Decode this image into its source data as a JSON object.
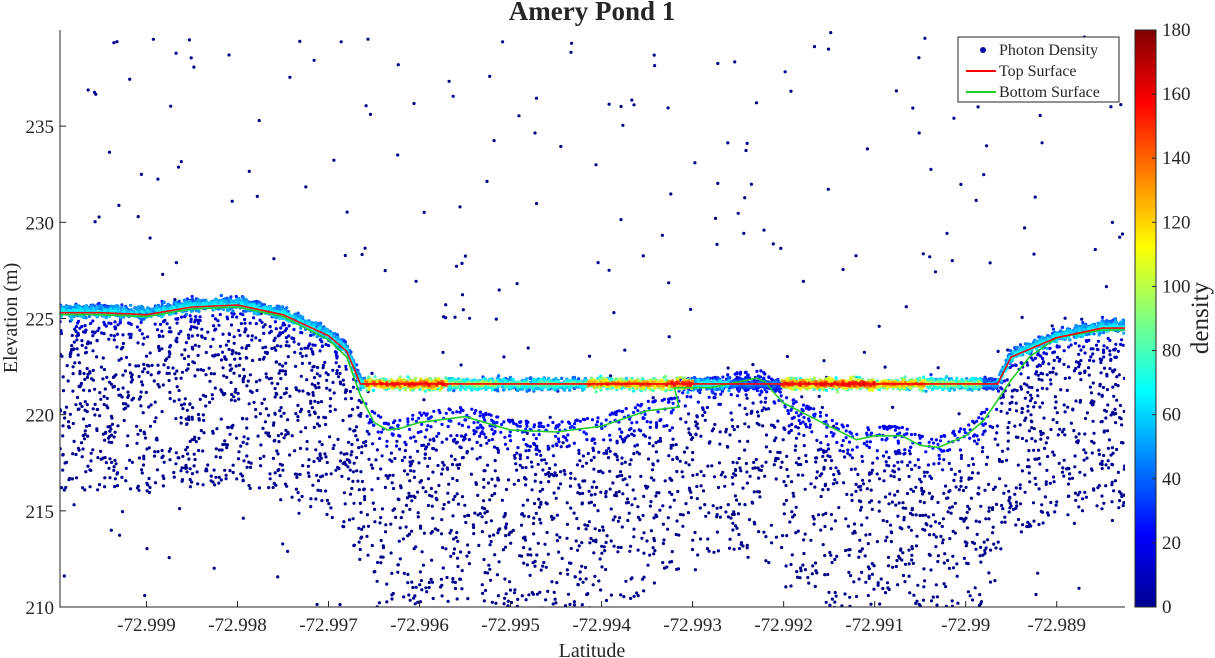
{
  "chart_data": {
    "type": "scatter",
    "title": "Amery Pond 1",
    "xlabel": "Latitude",
    "ylabel": "Elevation (m)",
    "xlim": [
      -72.99995,
      -72.98825
    ],
    "ylim": [
      210,
      240
    ],
    "xticks": [
      -72.999,
      -72.998,
      -72.997,
      -72.996,
      -72.995,
      -72.994,
      -72.993,
      -72.992,
      -72.991,
      -72.99,
      -72.989
    ],
    "xtick_labels": [
      "-72.999",
      "-72.998",
      "-72.997",
      "-72.996",
      "-72.995",
      "-72.994",
      "-72.993",
      "-72.992",
      "-72.991",
      "-72.99",
      "-72.989"
    ],
    "yticks": [
      210,
      215,
      220,
      225,
      230,
      235
    ],
    "ytick_labels": [
      "210",
      "215",
      "220",
      "225",
      "230",
      "235"
    ],
    "legend": {
      "position": "top-right",
      "entries": [
        {
          "label": "Photon Density",
          "marker": "dot",
          "color": "#0a0aa8"
        },
        {
          "label": "Top Surface",
          "marker": "line",
          "color": "#ff0000"
        },
        {
          "label": "Bottom Surface",
          "marker": "line",
          "color": "#22cc22"
        }
      ]
    },
    "colorbar": {
      "label": "density",
      "colormap": "jet",
      "range": [
        0,
        180
      ],
      "ticks": [
        0,
        20,
        40,
        60,
        80,
        100,
        120,
        140,
        160,
        180
      ],
      "tick_labels": [
        "0",
        "20",
        "40",
        "60",
        "80",
        "100",
        "120",
        "140",
        "160",
        "180"
      ]
    },
    "series": [
      {
        "name": "Top Surface",
        "type": "line",
        "color": "#ff0000",
        "x": [
          -72.99995,
          -72.9995,
          -72.999,
          -72.9985,
          -72.998,
          -72.9975,
          -72.997,
          -72.9968,
          -72.99665,
          -72.9965,
          -72.99,
          -72.98965,
          -72.9895,
          -72.989,
          -72.9885,
          -72.98825
        ],
        "y": [
          225.3,
          225.3,
          225.2,
          225.6,
          225.7,
          225.2,
          224.1,
          223.3,
          221.6,
          221.6,
          221.6,
          221.6,
          223.0,
          224.0,
          224.5,
          224.5
        ]
      },
      {
        "name": "Bottom Surface",
        "type": "line",
        "color": "#22cc22",
        "x": [
          -72.99995,
          -72.9995,
          -72.999,
          -72.9985,
          -72.998,
          -72.9975,
          -72.997,
          -72.9968,
          -72.99665,
          -72.9965,
          -72.99635,
          -72.9962,
          -72.996,
          -72.9955,
          -72.995,
          -72.9945,
          -72.994,
          -72.9935,
          -72.99315,
          -72.9932,
          -72.993,
          -72.9928,
          -72.9925,
          -72.9923,
          -72.9922,
          -72.9921,
          -72.992,
          -72.9915,
          -72.9912,
          -72.991,
          -72.9907,
          -72.9905,
          -72.9903,
          -72.99,
          -72.9898,
          -72.9895,
          -72.9893,
          -72.989,
          -72.9885,
          -72.98825
        ],
        "y": [
          225.2,
          225.2,
          225.1,
          225.5,
          225.6,
          225.1,
          223.9,
          223.0,
          221.0,
          219.6,
          219.2,
          219.3,
          219.6,
          219.9,
          219.2,
          219.1,
          219.4,
          220.2,
          220.4,
          221.4,
          221.4,
          221.4,
          221.7,
          221.9,
          221.7,
          221.1,
          220.6,
          219.4,
          218.7,
          218.9,
          218.9,
          218.4,
          218.3,
          218.9,
          219.7,
          221.8,
          223.0,
          224.0,
          224.4,
          224.4
        ]
      },
      {
        "name": "Photon Density",
        "type": "scatter",
        "encoding": "color = density (jet colormap, 0-180)",
        "sampled_points": [
          {
            "x": -72.9994,
            "y": 225.4,
            "density": 65
          },
          {
            "x": -72.9985,
            "y": 225.6,
            "density": 72
          },
          {
            "x": -72.998,
            "y": 225.9,
            "density": 75
          },
          {
            "x": -72.9973,
            "y": 225.0,
            "density": 68
          },
          {
            "x": -72.99615,
            "y": 221.5,
            "density": 165
          },
          {
            "x": -72.9959,
            "y": 221.6,
            "density": 170
          },
          {
            "x": -72.9955,
            "y": 221.6,
            "density": 110
          },
          {
            "x": -72.9948,
            "y": 221.5,
            "density": 95
          },
          {
            "x": -72.9935,
            "y": 221.5,
            "density": 155
          },
          {
            "x": -72.9931,
            "y": 221.5,
            "density": 175
          },
          {
            "x": -72.9929,
            "y": 222.0,
            "density": 85
          },
          {
            "x": -72.9923,
            "y": 222.3,
            "density": 50
          },
          {
            "x": -72.99175,
            "y": 221.5,
            "density": 170
          },
          {
            "x": -72.9913,
            "y": 221.6,
            "density": 178
          },
          {
            "x": -72.9907,
            "y": 221.5,
            "density": 150
          },
          {
            "x": -72.9902,
            "y": 221.6,
            "density": 110
          },
          {
            "x": -72.98945,
            "y": 223.3,
            "density": 60
          },
          {
            "x": -72.9886,
            "y": 224.5,
            "density": 70
          },
          {
            "x": -72.9959,
            "y": 219.6,
            "density": 30
          },
          {
            "x": -72.9945,
            "y": 217.0,
            "density": 4
          },
          {
            "x": -72.991,
            "y": 216.0,
            "density": 4
          },
          {
            "x": -72.9985,
            "y": 222.0,
            "density": 8
          },
          {
            "x": -72.995,
            "y": 235.0,
            "density": 1
          },
          {
            "x": -72.9925,
            "y": 231.0,
            "density": 1
          }
        ]
      }
    ]
  }
}
